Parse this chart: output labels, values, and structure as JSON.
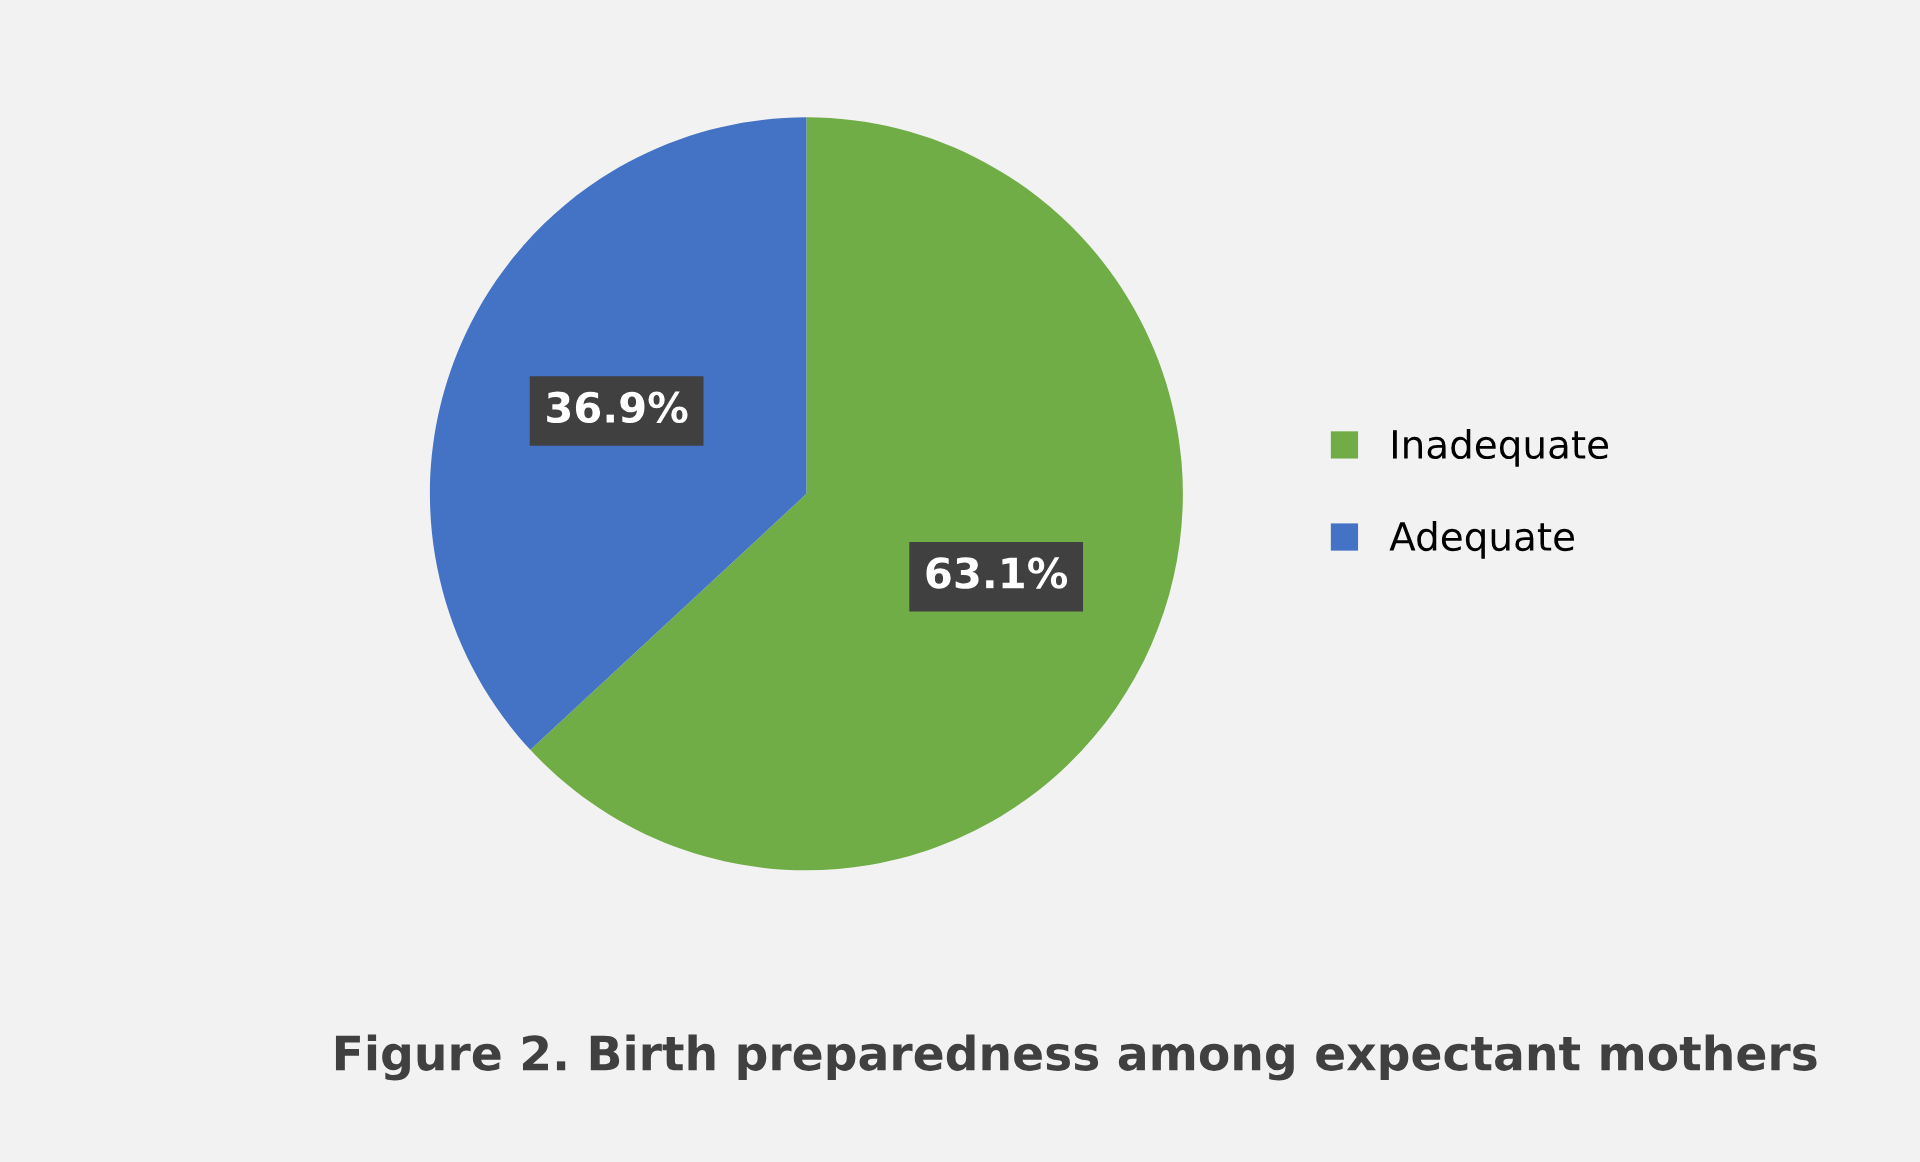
{
  "chart_data": {
    "type": "pie",
    "title": "Figure 2. Birth preparedness among expectant mothers",
    "categories": [
      "Inadequate",
      "Adequate"
    ],
    "values": [
      63.1,
      36.9
    ],
    "colors": [
      "#70ad47",
      "#4472c4"
    ],
    "value_labels": [
      "63.1%",
      "36.9%"
    ],
    "legend": "right"
  }
}
